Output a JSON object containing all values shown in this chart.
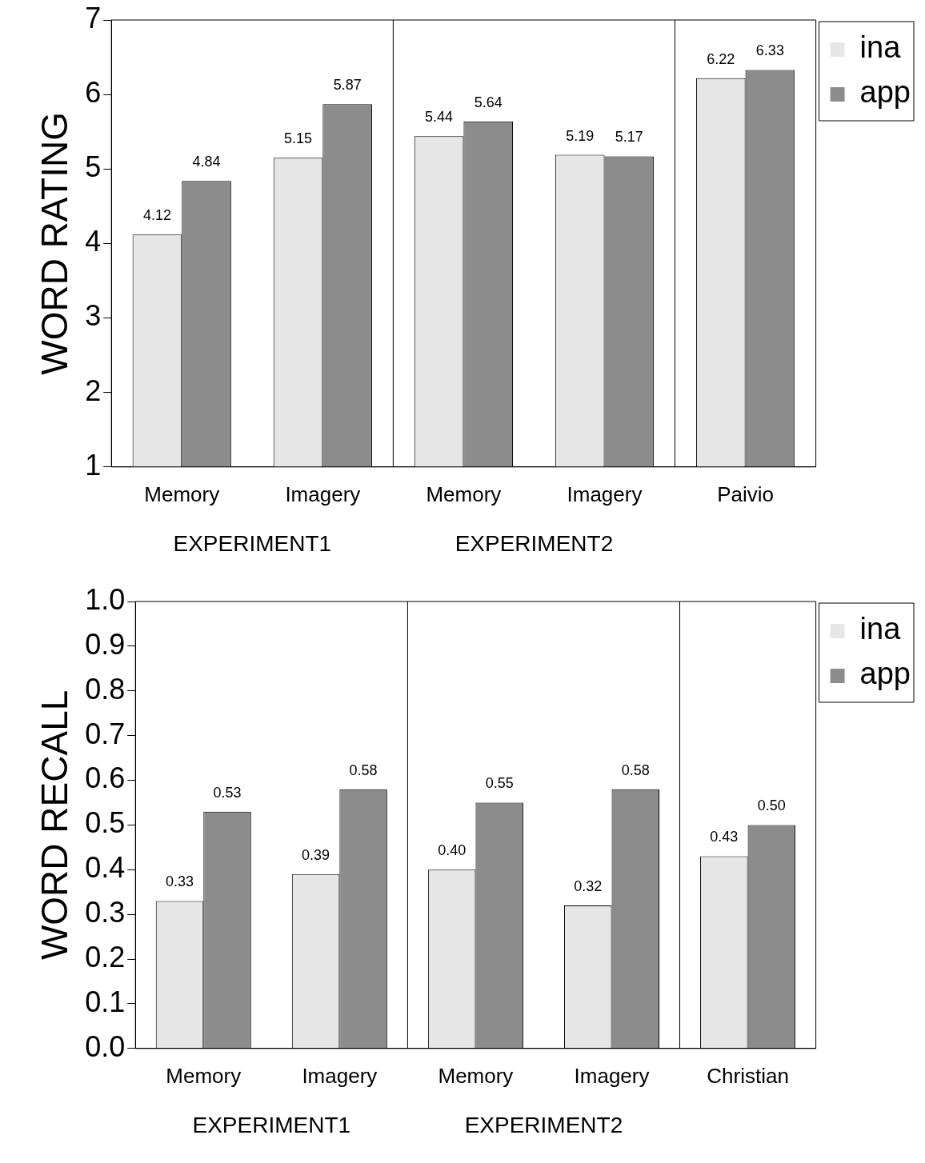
{
  "chart_data": [
    {
      "type": "bar",
      "ylabel": "WORD RATING",
      "categories": [
        "Memory",
        "Imagery",
        "Memory",
        "Imagery",
        "Paivio"
      ],
      "series": [
        {
          "name": "ina",
          "color": "#e6e6e6",
          "values": [
            4.12,
            5.15,
            5.44,
            5.19,
            6.22
          ],
          "value_labels": [
            "4.12",
            "5.15",
            "5.44",
            "5.19",
            "6.22"
          ]
        },
        {
          "name": "app",
          "color": "#8c8c8c",
          "values": [
            4.84,
            5.87,
            5.64,
            5.17,
            6.33
          ],
          "value_labels": [
            "4.84",
            "5.87",
            "5.64",
            "5.17",
            "6.33"
          ]
        }
      ],
      "ylim": [
        1,
        7
      ],
      "yticks": [
        1,
        2,
        3,
        4,
        5,
        6,
        7
      ],
      "grid": false,
      "legend": "top right",
      "annotations": [
        "EXPERIMENT1",
        "EXPERIMENT2"
      ]
    },
    {
      "type": "bar",
      "ylabel": "WORD RECALL",
      "categories": [
        "Memory",
        "Imagery",
        "Memory",
        "Imagery",
        "Christian"
      ],
      "series": [
        {
          "name": "ina",
          "color": "#e6e6e6",
          "values": [
            0.33,
            0.39,
            0.4,
            0.32,
            0.43
          ],
          "value_labels": [
            "0.33",
            "0.39",
            "0.40",
            "0.32",
            "0.43"
          ]
        },
        {
          "name": "app",
          "color": "#8c8c8c",
          "values": [
            0.53,
            0.58,
            0.55,
            0.58,
            0.5
          ],
          "value_labels": [
            "0.53",
            "0.58",
            "0.55",
            "0.58",
            "0.50"
          ]
        }
      ],
      "ylim": [
        0,
        1
      ],
      "yticks": [
        {
          "value": 0,
          "label": "0.0"
        },
        0.1,
        0.2,
        0.3,
        0.4,
        0.5,
        0.6,
        0.7,
        0.8,
        0.9,
        {
          "value": 1,
          "label": "1.0"
        }
      ],
      "grid": false,
      "legend": "top right",
      "annotations": [
        "EXPERIMENT1",
        "EXPERIMENT2"
      ]
    }
  ]
}
